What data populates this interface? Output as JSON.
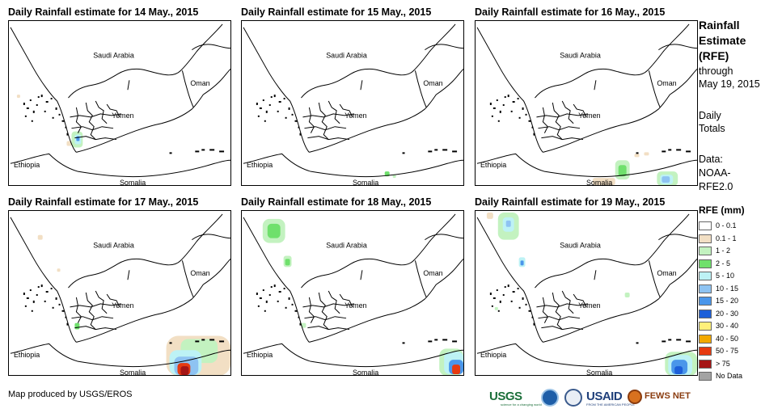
{
  "panels": [
    {
      "title": "Daily Rainfall estimate for 14 May., 2015"
    },
    {
      "title": "Daily Rainfall estimate for 15 May., 2015"
    },
    {
      "title": "Daily Rainfall estimate for 16 May., 2015"
    },
    {
      "title": "Daily Rainfall estimate for 17 May., 2015"
    },
    {
      "title": "Daily Rainfall estimate for 18 May., 2015"
    },
    {
      "title": "Daily Rainfall estimate for 19 May., 2015"
    }
  ],
  "map_labels": {
    "saudi_arabia": "Saudi Arabia",
    "oman": "Oman",
    "yemen": "Yemen",
    "ethiopia": "Ethiopia",
    "somalia": "Somalia"
  },
  "side": {
    "title_line1": "Rainfall",
    "title_line2": "Estimate",
    "title_line3": "(RFE)",
    "through_line1": "through",
    "through_line2": "May 19, 2015",
    "daily_line1": "Daily",
    "daily_line2": "Totals",
    "source_line1": "Data:",
    "source_line2": "NOAA-",
    "source_line3": "RFE2.0"
  },
  "legend": {
    "title": "RFE (mm)",
    "items": [
      {
        "label": "0 - 0.1",
        "color": "#ffffff"
      },
      {
        "label": "0.1 - 1",
        "color": "#f2dfc4"
      },
      {
        "label": "1 - 2",
        "color": "#c3f2c0"
      },
      {
        "label": "2 - 5",
        "color": "#6fe06c"
      },
      {
        "label": "5 - 10",
        "color": "#bdf2f5"
      },
      {
        "label": "10 - 15",
        "color": "#8ec3f2"
      },
      {
        "label": "15 - 20",
        "color": "#4a96ea"
      },
      {
        "label": "20 - 30",
        "color": "#1c5fd9"
      },
      {
        "label": "30 - 40",
        "color": "#fff07a"
      },
      {
        "label": "40 - 50",
        "color": "#f2a900"
      },
      {
        "label": "50 - 75",
        "color": "#e63a10"
      },
      {
        "label": "> 75",
        "color": "#a51515"
      },
      {
        "label": "No Data",
        "color": "#a3a3a3"
      }
    ]
  },
  "credit": "Map produced by USGS/EROS",
  "logos": {
    "usgs": "USGS",
    "usgs_tagline": "science for a changing world",
    "usaid": "USAID",
    "usaid_tagline": "FROM THE AMERICAN PEOPLE",
    "fews": "FEWS NET"
  }
}
